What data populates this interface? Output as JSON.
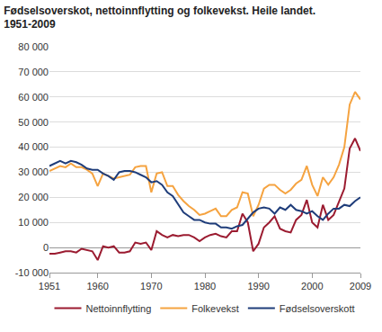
{
  "chart_data": {
    "type": "line",
    "title": [
      "Fødselsoverskot, nettoinnflytting og folkevekst. Heile landet.",
      "1951-2009"
    ],
    "x": [
      1951,
      1952,
      1953,
      1954,
      1955,
      1956,
      1957,
      1958,
      1959,
      1960,
      1961,
      1962,
      1963,
      1964,
      1965,
      1966,
      1967,
      1968,
      1969,
      1970,
      1971,
      1972,
      1973,
      1974,
      1975,
      1976,
      1977,
      1978,
      1979,
      1980,
      1981,
      1982,
      1983,
      1984,
      1985,
      1986,
      1987,
      1988,
      1989,
      1990,
      1991,
      1992,
      1993,
      1994,
      1995,
      1996,
      1997,
      1998,
      1999,
      2000,
      2001,
      2002,
      2003,
      2004,
      2005,
      2006,
      2007,
      2008,
      2009
    ],
    "series": [
      {
        "name": "Nettoinnflytting",
        "color": "#9b1b30",
        "values": [
          -2500,
          -2500,
          -2000,
          -1500,
          -1500,
          -2000,
          -500,
          -1000,
          -1500,
          -5000,
          500,
          0,
          500,
          -2000,
          -2000,
          -1500,
          2000,
          1500,
          2000,
          -1000,
          6500,
          5000,
          4000,
          5000,
          4500,
          5000,
          5000,
          4000,
          2500,
          4000,
          5000,
          5500,
          4500,
          4000,
          6500,
          6500,
          13500,
          10000,
          -1500,
          1500,
          8000,
          10000,
          12500,
          7500,
          6500,
          6000,
          11000,
          13000,
          19000,
          10000,
          8000,
          17000,
          11000,
          13000,
          18000,
          23500,
          39500,
          43500,
          38500
        ]
      },
      {
        "name": "Folkevekst",
        "color": "#f5a340",
        "values": [
          30500,
          31500,
          32500,
          32000,
          33500,
          32000,
          32000,
          31000,
          29500,
          24500,
          29500,
          28500,
          27500,
          28000,
          28500,
          29000,
          32000,
          32500,
          32500,
          22000,
          29500,
          30000,
          24500,
          24500,
          21000,
          18500,
          16500,
          15000,
          13000,
          13500,
          14500,
          15500,
          12500,
          12500,
          15000,
          16000,
          22000,
          21500,
          12500,
          17000,
          23500,
          25000,
          25000,
          23000,
          21500,
          23000,
          25500,
          27000,
          32500,
          25000,
          20500,
          28000,
          25000,
          28000,
          33000,
          40000,
          57000,
          62000,
          59000
        ]
      },
      {
        "name": "Fødselsoverskott",
        "color": "#1f3d7a",
        "values": [
          32500,
          33500,
          34500,
          33500,
          34500,
          34000,
          33000,
          31500,
          31000,
          31000,
          29500,
          28500,
          27000,
          30000,
          30500,
          30500,
          30000,
          29000,
          28000,
          26000,
          26500,
          25000,
          22000,
          20500,
          17000,
          14000,
          12500,
          11000,
          11000,
          10000,
          9500,
          9500,
          8000,
          8000,
          7500,
          8500,
          9000,
          11500,
          14000,
          15500,
          16000,
          15500,
          13500,
          16000,
          15000,
          17000,
          15000,
          14500,
          13500,
          14500,
          12500,
          11000,
          13500,
          15500,
          15500,
          17000,
          16500,
          18500,
          20000
        ]
      }
    ],
    "xlim": [
      1951,
      2009
    ],
    "xticks": [
      1951,
      1960,
      1970,
      1980,
      1990,
      2000,
      2009
    ],
    "ylim": [
      -10000,
      80000
    ],
    "yticks": [
      {
        "value": -10000,
        "label": "-10 000"
      },
      0,
      {
        "value": 10000,
        "label": "10 000"
      },
      {
        "value": 20000,
        "label": "20 000"
      },
      {
        "value": 30000,
        "label": "30 000"
      },
      {
        "value": 40000,
        "label": "40 000"
      },
      {
        "value": 50000,
        "label": "50 000"
      },
      {
        "value": 60000,
        "label": "60 000"
      },
      {
        "value": 70000,
        "label": "70 000"
      },
      {
        "value": 80000,
        "label": "80 000"
      }
    ],
    "grid": true,
    "legend": "bottom"
  }
}
